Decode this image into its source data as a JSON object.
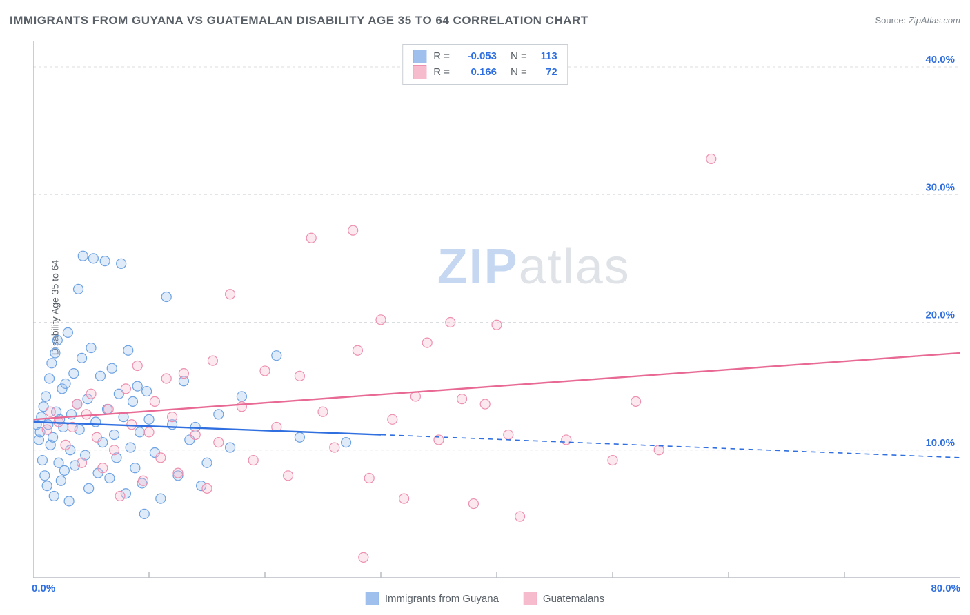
{
  "title": "IMMIGRANTS FROM GUYANA VS GUATEMALAN DISABILITY AGE 35 TO 64 CORRELATION CHART",
  "source_label": "Source: ",
  "source_value": "ZipAtlas.com",
  "ylabel": "Disability Age 35 to 64",
  "watermark": {
    "zip": "ZIP",
    "atlas": "atlas"
  },
  "chart": {
    "type": "scatter",
    "x_domain": [
      0,
      80
    ],
    "y_domain": [
      0,
      42
    ],
    "x_ticks": [
      0,
      80
    ],
    "x_tick_labels": [
      "0.0%",
      "80.0%"
    ],
    "x_tick_minor": [
      10,
      20,
      30,
      40,
      50,
      60,
      70
    ],
    "y_ticks": [
      10,
      20,
      30,
      40
    ],
    "y_tick_labels": [
      "10.0%",
      "20.0%",
      "30.0%",
      "40.0%"
    ],
    "background_color": "#ffffff",
    "grid_color": "#d9dde1",
    "axis_color": "#b8bec4",
    "tick_label_color": "#2f6fe0",
    "marker_radius": 7,
    "series": [
      {
        "id": "guyana",
        "label": "Immigrants from Guyana",
        "fill": "#9fc0ec",
        "stroke": "#6da2e3",
        "trend_color": "#2f6fe0",
        "r_value": "-0.053",
        "n_value": "113",
        "trend": {
          "x0": 0,
          "y0": 12.2,
          "x_solid_end": 30,
          "y_solid_end": 11.2,
          "x1": 80,
          "y1": 9.4
        },
        "points": [
          [
            0.3,
            12.0
          ],
          [
            0.5,
            10.8
          ],
          [
            0.6,
            11.4
          ],
          [
            0.7,
            12.6
          ],
          [
            0.8,
            9.2
          ],
          [
            0.9,
            13.4
          ],
          [
            1.0,
            8.0
          ],
          [
            1.1,
            14.2
          ],
          [
            1.2,
            7.2
          ],
          [
            1.3,
            12.0
          ],
          [
            1.4,
            15.6
          ],
          [
            1.5,
            10.4
          ],
          [
            1.6,
            16.8
          ],
          [
            1.7,
            11.0
          ],
          [
            1.8,
            6.4
          ],
          [
            1.9,
            17.6
          ],
          [
            2.0,
            13.0
          ],
          [
            2.1,
            18.6
          ],
          [
            2.2,
            9.0
          ],
          [
            2.3,
            12.4
          ],
          [
            2.4,
            7.6
          ],
          [
            2.5,
            14.8
          ],
          [
            2.6,
            11.8
          ],
          [
            2.7,
            8.4
          ],
          [
            2.8,
            15.2
          ],
          [
            3.0,
            19.2
          ],
          [
            3.1,
            6.0
          ],
          [
            3.2,
            10.0
          ],
          [
            3.3,
            12.8
          ],
          [
            3.5,
            16.0
          ],
          [
            3.6,
            8.8
          ],
          [
            3.8,
            13.6
          ],
          [
            3.9,
            22.6
          ],
          [
            4.0,
            11.6
          ],
          [
            4.2,
            17.2
          ],
          [
            4.3,
            25.2
          ],
          [
            4.5,
            9.6
          ],
          [
            4.7,
            14.0
          ],
          [
            4.8,
            7.0
          ],
          [
            5.0,
            18.0
          ],
          [
            5.2,
            25.0
          ],
          [
            5.4,
            12.2
          ],
          [
            5.6,
            8.2
          ],
          [
            5.8,
            15.8
          ],
          [
            6.0,
            10.6
          ],
          [
            6.2,
            24.8
          ],
          [
            6.4,
            13.2
          ],
          [
            6.6,
            7.8
          ],
          [
            6.8,
            16.4
          ],
          [
            7.0,
            11.2
          ],
          [
            7.2,
            9.4
          ],
          [
            7.4,
            14.4
          ],
          [
            7.6,
            24.6
          ],
          [
            7.8,
            12.6
          ],
          [
            8.0,
            6.6
          ],
          [
            8.2,
            17.8
          ],
          [
            8.4,
            10.2
          ],
          [
            8.6,
            13.8
          ],
          [
            8.8,
            8.6
          ],
          [
            9.0,
            15.0
          ],
          [
            9.2,
            11.4
          ],
          [
            9.4,
            7.4
          ],
          [
            9.6,
            5.0
          ],
          [
            9.8,
            14.6
          ],
          [
            10.0,
            12.4
          ],
          [
            10.5,
            9.8
          ],
          [
            11.0,
            6.2
          ],
          [
            11.5,
            22.0
          ],
          [
            12.0,
            12.0
          ],
          [
            12.5,
            8.0
          ],
          [
            13.0,
            15.4
          ],
          [
            13.5,
            10.8
          ],
          [
            14.0,
            11.8
          ],
          [
            14.5,
            7.2
          ],
          [
            15.0,
            9.0
          ],
          [
            16.0,
            12.8
          ],
          [
            17.0,
            10.2
          ],
          [
            18.0,
            14.2
          ],
          [
            21.0,
            17.4
          ],
          [
            23.0,
            11.0
          ],
          [
            27.0,
            10.6
          ]
        ]
      },
      {
        "id": "guatemalan",
        "label": "Guatemalans",
        "fill": "#f6bccd",
        "stroke": "#ed8fae",
        "trend_color": "#e86a94",
        "r_value": "0.166",
        "n_value": "72",
        "trend": {
          "x0": 0,
          "y0": 12.4,
          "x_solid_end": 80,
          "y_solid_end": 17.6,
          "x1": 80,
          "y1": 17.6
        },
        "points": [
          [
            1.2,
            11.6
          ],
          [
            1.5,
            13.0
          ],
          [
            2.2,
            12.2
          ],
          [
            2.8,
            10.4
          ],
          [
            3.4,
            11.8
          ],
          [
            3.8,
            13.6
          ],
          [
            4.2,
            9.0
          ],
          [
            4.6,
            12.8
          ],
          [
            5.0,
            14.4
          ],
          [
            5.5,
            11.0
          ],
          [
            6.0,
            8.6
          ],
          [
            6.5,
            13.2
          ],
          [
            7.0,
            10.0
          ],
          [
            7.5,
            6.4
          ],
          [
            8.0,
            14.8
          ],
          [
            8.5,
            12.0
          ],
          [
            9.0,
            16.6
          ],
          [
            9.5,
            7.6
          ],
          [
            10.0,
            11.4
          ],
          [
            10.5,
            13.8
          ],
          [
            11.0,
            9.4
          ],
          [
            11.5,
            15.6
          ],
          [
            12.0,
            12.6
          ],
          [
            12.5,
            8.2
          ],
          [
            13.0,
            16.0
          ],
          [
            14.0,
            11.2
          ],
          [
            15.0,
            7.0
          ],
          [
            15.5,
            17.0
          ],
          [
            16.0,
            10.6
          ],
          [
            17.0,
            22.2
          ],
          [
            18.0,
            13.4
          ],
          [
            19.0,
            9.2
          ],
          [
            20.0,
            16.2
          ],
          [
            21.0,
            11.8
          ],
          [
            22.0,
            8.0
          ],
          [
            23.0,
            15.8
          ],
          [
            24.0,
            26.6
          ],
          [
            25.0,
            13.0
          ],
          [
            26.0,
            10.2
          ],
          [
            27.6,
            27.2
          ],
          [
            28.0,
            17.8
          ],
          [
            28.5,
            1.6
          ],
          [
            29.0,
            7.8
          ],
          [
            30.0,
            20.2
          ],
          [
            31.0,
            12.4
          ],
          [
            32.0,
            6.2
          ],
          [
            33.0,
            14.2
          ],
          [
            34.0,
            18.4
          ],
          [
            35.0,
            10.8
          ],
          [
            36.0,
            20.0
          ],
          [
            37.0,
            14.0
          ],
          [
            38.0,
            5.8
          ],
          [
            39.0,
            13.6
          ],
          [
            40.0,
            19.8
          ],
          [
            41.0,
            11.2
          ],
          [
            42.0,
            4.8
          ],
          [
            46.0,
            10.8
          ],
          [
            50.0,
            9.2
          ],
          [
            52.0,
            13.8
          ],
          [
            54.0,
            10.0
          ],
          [
            58.5,
            32.8
          ]
        ]
      }
    ]
  },
  "legend": {
    "top_position": "center",
    "r_label": "R =",
    "n_label": "N ="
  }
}
